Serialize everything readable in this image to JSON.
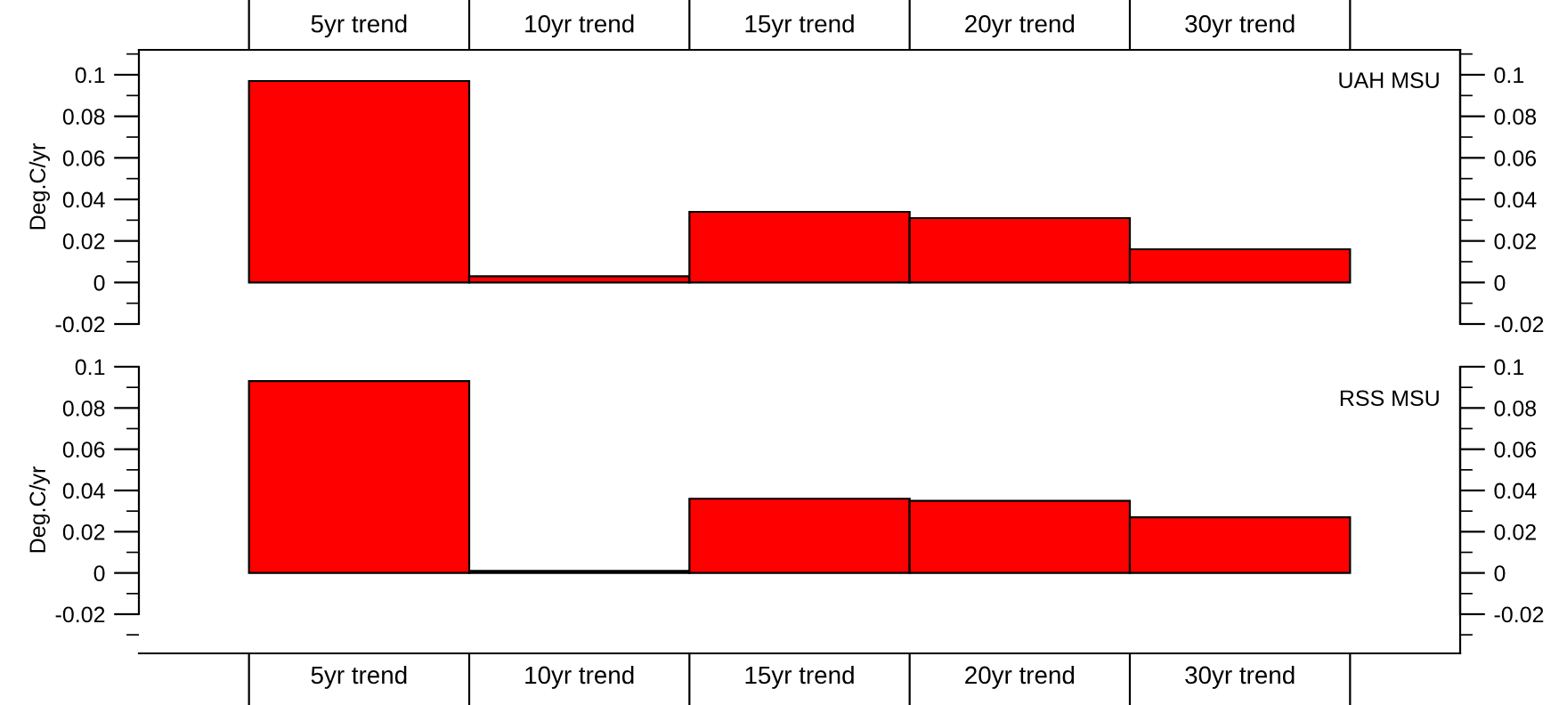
{
  "chart_data": [
    {
      "type": "bar",
      "ylabel": "Deg.C/yr",
      "categories": [
        "5yr trend",
        "10yr trend",
        "15yr trend",
        "20yr trend",
        "30yr trend"
      ],
      "series": [
        {
          "color": "#ff0000",
          "values": [
            0.097,
            0.003,
            0.034,
            0.031,
            0.016
          ]
        }
      ],
      "ylim": [
        -0.02,
        0.112
      ],
      "yticks": [
        -0.02,
        0,
        0.02,
        0.04,
        0.06,
        0.08,
        0.1
      ],
      "y2lim": [
        -0.02,
        0.112
      ],
      "y2ticks": [
        -0.02,
        0,
        0.02,
        0.04,
        0.06,
        0.08,
        0.1
      ],
      "annotations": [
        "UAH MSU"
      ],
      "grid": false,
      "legend": false
    },
    {
      "type": "bar",
      "ylabel": "Deg.C/yr",
      "categories": [
        "5yr trend",
        "10yr trend",
        "15yr trend",
        "20yr trend",
        "30yr trend"
      ],
      "series": [
        {
          "color": "#ff0000",
          "values": [
            0.093,
            0.001,
            0.036,
            0.035,
            0.027
          ]
        }
      ],
      "ylim": [
        -0.039,
        0.1
      ],
      "yticks": [
        -0.02,
        0,
        0.02,
        0.04,
        0.06,
        0.08,
        0.1
      ],
      "y2lim": [
        -0.039,
        0.1
      ],
      "y2ticks": [
        -0.02,
        0,
        0.02,
        0.04,
        0.06,
        0.08,
        0.1
      ],
      "annotations": [
        "RSS MSU"
      ],
      "grid": false,
      "legend": false
    }
  ]
}
